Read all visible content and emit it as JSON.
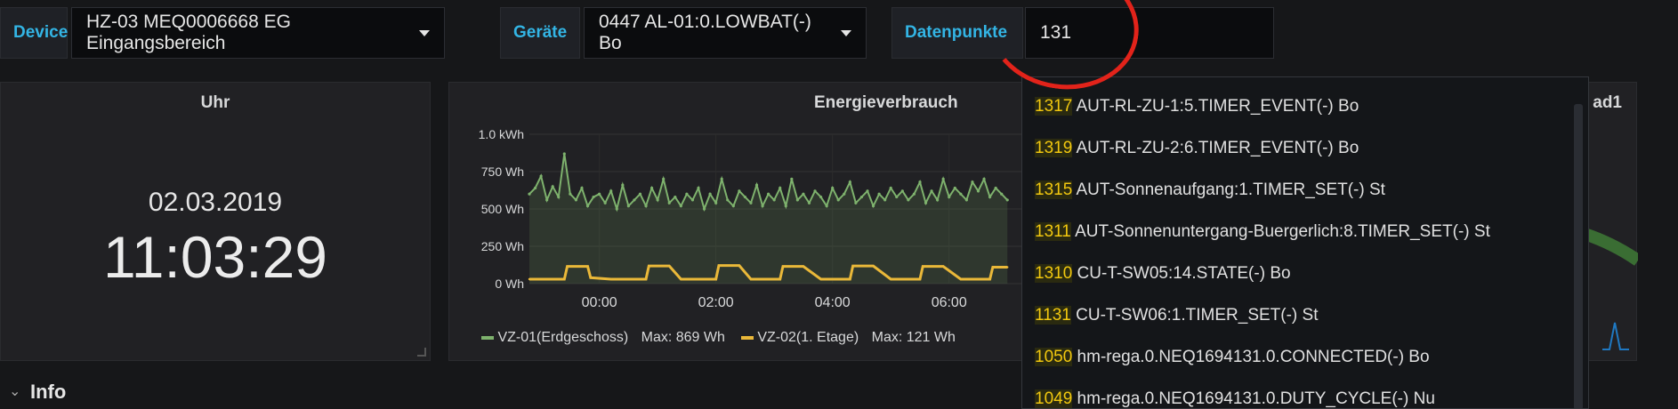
{
  "variables": {
    "device_label": "Device",
    "device_value": "HZ-03 MEQ0006668 EG Eingangsbereich",
    "geraete_label": "Geräte",
    "geraete_value": "0447 AL-01:0.LOWBAT(-) Bo",
    "datenpunkte_label": "Datenpunkte",
    "datenpunkte_value": "131"
  },
  "clock_panel": {
    "title": "Uhr",
    "date": "02.03.2019",
    "time": "11:03:29"
  },
  "energy_panel": {
    "title": "Energieverbrauch",
    "legend": [
      {
        "label": "VZ-01(Erdgeschoss)",
        "max": "Max: 869 Wh",
        "color": "#7eb26d"
      },
      {
        "label": "VZ-02(1. Etage)",
        "max": "Max: 121 Wh",
        "color": "#eab839"
      }
    ]
  },
  "right_panel": {
    "title_fragment": "ad1"
  },
  "row": {
    "label": "Info"
  },
  "dropdown": {
    "items": [
      {
        "id": "1317",
        "text": " AUT-RL-ZU-1:5.TIMER_EVENT(-) Bo"
      },
      {
        "id": "1319",
        "text": " AUT-RL-ZU-2:6.TIMER_EVENT(-) Bo"
      },
      {
        "id": "1315",
        "text": " AUT-Sonnenaufgang:1.TIMER_SET(-) St"
      },
      {
        "id": "1311",
        "text": " AUT-Sonnenuntergang-Buergerlich:8.TIMER_SET(-) St"
      },
      {
        "id": "1310",
        "text": " CU-T-SW05:14.STATE(-) Bo"
      },
      {
        "id": "1131",
        "text": " CU-T-SW06:1.TIMER_SET(-) St"
      },
      {
        "id": "1050",
        "text": " hm-rega.0.NEQ1694131.0.CONNECTED(-) Bo"
      },
      {
        "id": "1049",
        "text": " hm-rega.0.NEQ1694131.0.DUTY_CYCLE(-) Nu"
      }
    ]
  },
  "chart_data": {
    "type": "line",
    "title": "Energieverbrauch",
    "xlabel": "",
    "ylabel": "",
    "x_ticks": [
      "00:00",
      "02:00",
      "04:00",
      "06:00"
    ],
    "y_ticks": [
      "1.0 kWh",
      "750 Wh",
      "500 Wh",
      "250 Wh",
      "0 Wh"
    ],
    "ylim": [
      0,
      1000
    ],
    "x_range_hours": [
      -1.2,
      7.5
    ],
    "grid": true,
    "legend_position": "bottom",
    "series": [
      {
        "name": "VZ-01(Erdgeschoss)",
        "color": "#7eb26d",
        "max": 869,
        "fill": true,
        "x": [
          -1.2,
          -1.1,
          -1.0,
          -0.9,
          -0.8,
          -0.7,
          -0.6,
          -0.5,
          -0.4,
          -0.3,
          -0.2,
          -0.1,
          0.0,
          0.1,
          0.2,
          0.3,
          0.4,
          0.5,
          0.6,
          0.7,
          0.8,
          0.9,
          1.0,
          1.1,
          1.2,
          1.3,
          1.4,
          1.5,
          1.6,
          1.7,
          1.8,
          1.9,
          2.0,
          2.1,
          2.2,
          2.3,
          2.4,
          2.5,
          2.6,
          2.7,
          2.8,
          2.9,
          3.0,
          3.1,
          3.2,
          3.3,
          3.4,
          3.5,
          3.6,
          3.7,
          3.8,
          3.9,
          4.0,
          4.1,
          4.2,
          4.3,
          4.4,
          4.5,
          4.6,
          4.7,
          4.8,
          4.9,
          5.0,
          5.1,
          5.2,
          5.3,
          5.4,
          5.5,
          5.6,
          5.7,
          5.8,
          5.9,
          6.0,
          6.1,
          6.2,
          6.3,
          6.4,
          6.5,
          6.6,
          6.7,
          6.8,
          6.9,
          7.0
        ],
        "values": [
          600,
          640,
          720,
          560,
          650,
          580,
          869,
          600,
          560,
          640,
          520,
          580,
          600,
          540,
          620,
          500,
          660,
          520,
          560,
          600,
          520,
          640,
          560,
          700,
          540,
          580,
          520,
          600,
          560,
          640,
          500,
          600,
          540,
          700,
          560,
          520,
          620,
          580,
          540,
          660,
          520,
          600,
          560,
          640,
          520,
          700,
          560,
          600,
          540,
          620,
          580,
          520,
          640,
          560,
          600,
          680,
          540,
          580,
          620,
          520,
          600,
          560,
          640,
          580,
          620,
          560,
          600,
          680,
          540,
          620,
          560,
          700,
          580,
          640,
          600,
          560,
          680,
          620,
          700,
          580,
          640,
          600,
          560
        ]
      },
      {
        "name": "VZ-02(1. Etage)",
        "color": "#eab839",
        "max": 121,
        "x": [
          -1.2,
          -0.8,
          -0.6,
          -0.55,
          -0.2,
          -0.15,
          0.2,
          0.3,
          0.8,
          0.85,
          1.2,
          1.4,
          2.0,
          2.05,
          2.4,
          2.6,
          3.1,
          3.15,
          3.5,
          3.8,
          4.3,
          4.35,
          4.7,
          5.0,
          5.5,
          5.55,
          5.9,
          6.2,
          6.7,
          6.75,
          7.0
        ],
        "values": [
          30,
          30,
          30,
          115,
          115,
          40,
          30,
          30,
          30,
          118,
          118,
          30,
          30,
          121,
          121,
          30,
          30,
          115,
          115,
          30,
          30,
          118,
          118,
          30,
          30,
          115,
          115,
          30,
          30,
          110,
          110
        ]
      }
    ]
  }
}
